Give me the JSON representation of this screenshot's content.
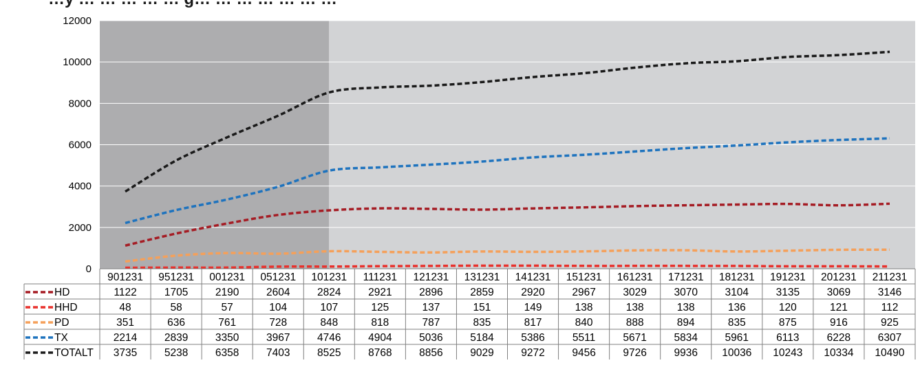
{
  "chart_data": {
    "type": "line",
    "title": "…y … … … … … g… … … … … … …",
    "categories": [
      "901231",
      "951231",
      "001231",
      "051231",
      "101231",
      "111231",
      "121231",
      "131231",
      "141231",
      "151231",
      "161231",
      "171231",
      "181231",
      "191231",
      "201231",
      "211231"
    ],
    "ylim": [
      0,
      12000
    ],
    "yticks": [
      0,
      2000,
      4000,
      6000,
      8000,
      10000,
      12000
    ],
    "grid": true,
    "legend": "data-table",
    "shaded_regions": [
      {
        "from": "901231",
        "to": "101231",
        "color": "#adadaf"
      },
      {
        "from": "101231",
        "to": "211231",
        "color": "#d2d3d5"
      }
    ],
    "series": [
      {
        "name": "HD",
        "color": "#a51c24",
        "values": [
          1122,
          1705,
          2190,
          2604,
          2824,
          2921,
          2896,
          2859,
          2920,
          2967,
          3029,
          3070,
          3104,
          3135,
          3069,
          3146
        ]
      },
      {
        "name": "HHD",
        "color": "#e8312c",
        "values": [
          48,
          58,
          57,
          104,
          107,
          125,
          137,
          151,
          149,
          138,
          138,
          138,
          136,
          120,
          121,
          112
        ]
      },
      {
        "name": "PD",
        "color": "#f5a05a",
        "values": [
          351,
          636,
          761,
          728,
          848,
          818,
          787,
          835,
          817,
          840,
          888,
          894,
          835,
          875,
          916,
          925
        ]
      },
      {
        "name": "TX",
        "color": "#1e73be",
        "values": [
          2214,
          2839,
          3350,
          3967,
          4746,
          4904,
          5036,
          5184,
          5386,
          5511,
          5671,
          5834,
          5961,
          6113,
          6228,
          6307
        ]
      },
      {
        "name": "TOTALT",
        "color": "#1a1a1a",
        "values": [
          3735,
          5238,
          6358,
          7403,
          8525,
          8768,
          8856,
          9029,
          9272,
          9456,
          9726,
          9936,
          10036,
          10243,
          10334,
          10490
        ]
      }
    ]
  }
}
